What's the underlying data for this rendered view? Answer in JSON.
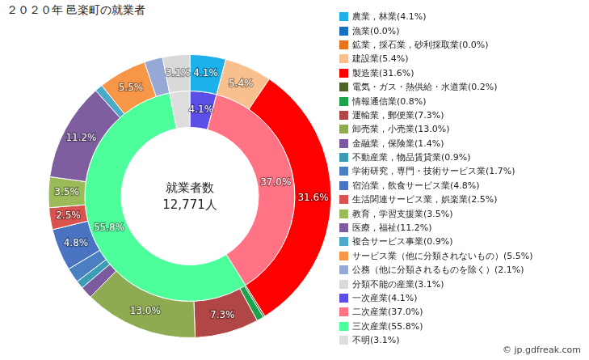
{
  "chart_data": {
    "type": "doughnut",
    "title": "２０２０年 邑楽町の就業者",
    "annotations": [
      "就業者数",
      "12,771人",
      "© jp.gdfreak.com"
    ],
    "legend": "right",
    "data_labels": true,
    "series": [
      {
        "categories": [
          "農業，林業(4.1%)",
          "漁業(0.0%)",
          "鉱業，採石業，砂利採取業(0.0%)",
          "建設業(5.4%)",
          "製造業(31.6%)",
          "電気・ガス・熱供給・水道業(0.2%)",
          "情報通信業(0.8%)",
          "運輸業，郵便業(7.3%)",
          "卸売業，小売業(13.0%)",
          "金融業，保険業(1.4%)",
          "不動産業，物品賃貸業(0.9%)",
          "学術研究，専門・技術サービス業(1.7%)",
          "宿泊業，飲食サービス業(4.8%)",
          "生活関連サービス業，娯楽業(2.5%)",
          "教育，学習支援業(3.5%)",
          "医療，福祉(11.2%)",
          "複合サービス事業(0.9%)",
          "サービス業（他に分類されないもの）(5.5%)",
          "公務（他に分類されるものを除く）(2.1%)",
          "分類不能の産業(3.1%)"
        ],
        "values": [
          4.1,
          0.0,
          0.0,
          5.4,
          31.6,
          0.2,
          0.8,
          7.3,
          13.0,
          1.4,
          0.9,
          1.7,
          4.8,
          2.5,
          3.5,
          11.2,
          0.9,
          5.5,
          2.1,
          3.1
        ],
        "value_labels": [
          "4.1%",
          null,
          null,
          "5.4%",
          "31.6%",
          null,
          null,
          "7.3%",
          "13.0%",
          null,
          null,
          null,
          "4.8%",
          "2.5%",
          "3.5%",
          "11.2%",
          null,
          "5.5%",
          null,
          "3.1%"
        ],
        "colors": [
          "#1cb1ea",
          "#1b6fc0",
          "#e8731a",
          "#f9c08f",
          "#ff0000",
          "#4f6228",
          "#1aa34a",
          "#b04646",
          "#8eab52",
          "#7b5a9f",
          "#3c9cb4",
          "#4a7fc1",
          "#4a74c2",
          "#d9534f",
          "#9bbb59",
          "#7e5e9e",
          "#4babc6",
          "#f79646",
          "#95a8d6",
          "#d9d9d9"
        ]
      },
      {
        "categories": [
          "一次産業(4.1%)",
          "二次産業(37.0%)",
          "三次産業(55.8%)",
          "不明(3.1%)"
        ],
        "values": [
          4.1,
          37.0,
          55.8,
          3.1
        ],
        "value_labels": [
          "4.1%",
          "37.0%",
          "55.8%",
          null
        ],
        "colors": [
          "#5b4fe8",
          "#ff7384",
          "#4dff9b",
          "#dedede"
        ]
      }
    ]
  }
}
